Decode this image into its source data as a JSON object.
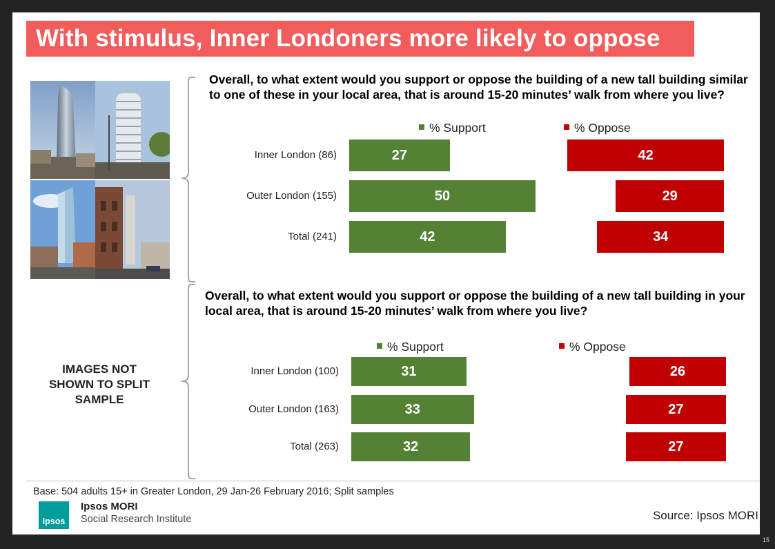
{
  "title": "With stimulus, Inner Londoners more likely to oppose",
  "images_note": "IMAGES NOT SHOWN TO SPLIT SAMPLE",
  "footer": {
    "base": "Base: 504 adults 15+ in Greater London, 29 Jan-26 February 2016; Split samples",
    "logo_text": "Ipsos",
    "org_name": "Ipsos MORI",
    "org_sub": "Social Research Institute",
    "source": "Source: Ipsos MORI",
    "page_number": "15"
  },
  "colors": {
    "support": "#548235",
    "oppose": "#c00000",
    "title_bg": "#f15c5c"
  },
  "chart_data": [
    {
      "type": "bar",
      "title": "Overall, to what extent would you support or oppose the building of a new tall building similar to one of these in your local area, that is around 15-20 minutes’ walk from where you live?",
      "categories": [
        "Inner London (86)",
        "Outer London (155)",
        "Total (241)"
      ],
      "series": [
        {
          "name": "% Support",
          "values": [
            27,
            50,
            42
          ]
        },
        {
          "name": "% Oppose",
          "values": [
            42,
            29,
            34
          ]
        }
      ]
    },
    {
      "type": "bar",
      "title": "Overall, to what extent would you support or oppose the building of a new tall building in your local area, that is around 15-20 minutes’ walk from where you live?",
      "categories": [
        "Inner London (100)",
        "Outer London (163)",
        "Total (263)"
      ],
      "series": [
        {
          "name": "% Support",
          "values": [
            31,
            33,
            32
          ]
        },
        {
          "name": "% Oppose",
          "values": [
            26,
            27,
            27
          ]
        }
      ]
    }
  ]
}
